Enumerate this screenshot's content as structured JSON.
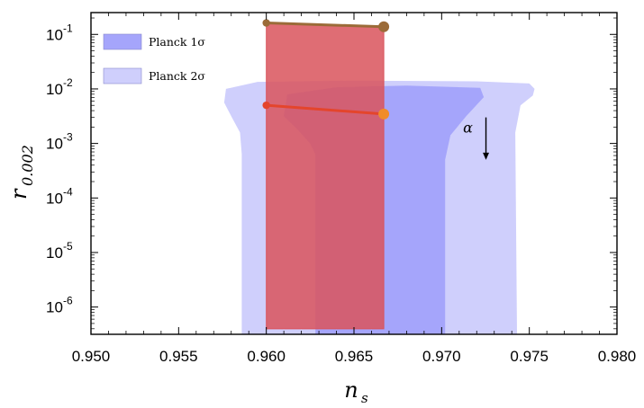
{
  "chart_data": {
    "type": "area",
    "title": "",
    "xlabel": "n",
    "xlabel_sub": "s",
    "ylabel": "r",
    "ylabel_sub": "0.002",
    "x_scale": "linear",
    "y_scale": "log",
    "xlim": [
      0.95,
      0.98
    ],
    "ylim_log10": [
      -6.5,
      -0.6
    ],
    "x_ticks": [
      0.95,
      0.955,
      0.96,
      0.965,
      0.97,
      0.975,
      0.98
    ],
    "x_tick_labels": [
      "0.950",
      "0.955",
      "0.960",
      "0.965",
      "0.970",
      "0.975",
      "0.980"
    ],
    "y_ticks_exp": [
      -6,
      -5,
      -4,
      -3,
      -2,
      -1
    ],
    "y_tick_base": "10",
    "y_tick_exp_labels": [
      "-6",
      "-5",
      "-4",
      "-3",
      "-2",
      "-1"
    ],
    "legend": {
      "placement": "top-left",
      "entries": [
        {
          "label": "Planck 1σ",
          "color": "#a5a5fb"
        },
        {
          "label": "Planck 2σ",
          "color": "#cfcffc"
        }
      ]
    },
    "regions": [
      {
        "name": "Planck 2σ",
        "color": "#cfcffc",
        "points": [
          [
            0.9586,
            -6.5
          ],
          [
            0.9586,
            -3.2
          ],
          [
            0.9585,
            -2.8
          ],
          [
            0.958,
            -2.5
          ],
          [
            0.9576,
            -2.25
          ],
          [
            0.9577,
            -2.0
          ],
          [
            0.9595,
            -1.87
          ],
          [
            0.965,
            -1.85
          ],
          [
            0.972,
            -1.86
          ],
          [
            0.975,
            -1.9
          ],
          [
            0.9753,
            -2.0
          ],
          [
            0.9752,
            -2.12
          ],
          [
            0.9745,
            -2.3
          ],
          [
            0.9742,
            -2.8
          ],
          [
            0.9743,
            -6.5
          ]
        ]
      },
      {
        "name": "Planck 1σ",
        "color": "#a5a5fb",
        "points": [
          [
            0.9628,
            -6.5
          ],
          [
            0.9628,
            -3.2
          ],
          [
            0.9625,
            -3.0
          ],
          [
            0.9618,
            -2.75
          ],
          [
            0.961,
            -2.5
          ],
          [
            0.9612,
            -2.1
          ],
          [
            0.964,
            -1.97
          ],
          [
            0.968,
            -1.94
          ],
          [
            0.9722,
            -1.98
          ],
          [
            0.9724,
            -2.15
          ],
          [
            0.9714,
            -2.5
          ],
          [
            0.9705,
            -2.85
          ],
          [
            0.9702,
            -3.3
          ],
          [
            0.9702,
            -6.5
          ]
        ]
      }
    ],
    "band": {
      "color": "#d9545c",
      "x_range": [
        0.96,
        0.9667
      ],
      "y_bottom_log10": -6.4,
      "y_top_log10": [
        -0.8,
        -0.87
      ]
    },
    "series": [
      {
        "color": "#9b6b38",
        "points": [
          [
            0.96,
            -0.79
          ],
          [
            0.9667,
            -0.86
          ]
        ],
        "start_marker": "small",
        "end_marker": "large"
      },
      {
        "color": "#e4452c",
        "points": [
          [
            0.96,
            -2.3
          ],
          [
            0.9667,
            -2.46
          ]
        ],
        "start_marker": "small",
        "end_marker": "large",
        "end_marker_color": "#f08c2a"
      }
    ],
    "annotation": {
      "text": "α",
      "x": 0.9715,
      "y_log10": -2.72,
      "arrow_to_y_log10": -3.3
    }
  }
}
